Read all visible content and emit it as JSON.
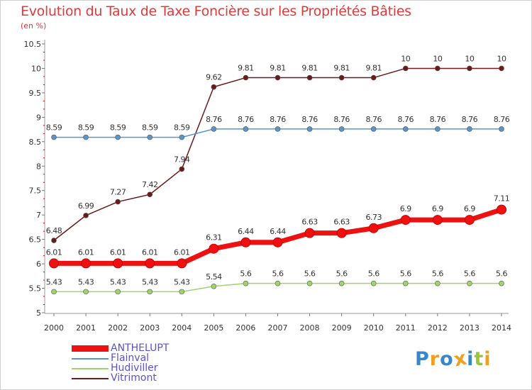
{
  "title": "Evolution du Taux de Taxe Foncière sur les Propriétés Bâties",
  "subtitle": "(en %)",
  "chart_data": {
    "type": "line",
    "title": "Evolution du Taux de Taxe Foncière sur les Propriétés Bâties",
    "ylabel": "(en %)",
    "xlabel": "",
    "x": [
      "2000",
      "2001",
      "2002",
      "2003",
      "2004",
      "2005",
      "2006",
      "2007",
      "2008",
      "2009",
      "2010",
      "2011",
      "2012",
      "2013",
      "2014"
    ],
    "ylim": [
      5,
      10.5
    ],
    "yticks": [
      "5",
      "5.5",
      "6",
      "6.5",
      "7",
      "7.5",
      "8",
      "8.5",
      "9",
      "9.5",
      "10",
      "10.5"
    ],
    "series": [
      {
        "name": "Vitrimont",
        "color": "#6b1a1a",
        "values": [
          6.48,
          6.99,
          7.27,
          7.42,
          7.94,
          9.62,
          9.81,
          9.81,
          9.81,
          9.81,
          9.81,
          10,
          10,
          10,
          10
        ],
        "labels": [
          "6.48",
          "6.99",
          "7.27",
          "7.42",
          "7.94",
          "9.62",
          "9.81",
          "9.81",
          "9.81",
          "9.81",
          "9.81",
          "10",
          "10",
          "10",
          "10"
        ]
      },
      {
        "name": "Flainval",
        "color": "#5b95c8",
        "values": [
          8.59,
          8.59,
          8.59,
          8.59,
          8.59,
          8.76,
          8.76,
          8.76,
          8.76,
          8.76,
          8.76,
          8.76,
          8.76,
          8.76,
          8.76
        ],
        "labels": [
          "8.59",
          "8.59",
          "8.59",
          "8.59",
          "8.59",
          "8.76",
          "8.76",
          "8.76",
          "8.76",
          "8.76",
          "8.76",
          "8.76",
          "8.76",
          "8.76",
          "8.76"
        ]
      },
      {
        "name": "Hudiviller",
        "color": "#9ed46a",
        "values": [
          5.43,
          5.43,
          5.43,
          5.43,
          5.43,
          5.54,
          5.6,
          5.6,
          5.6,
          5.6,
          5.6,
          5.6,
          5.6,
          5.6,
          5.6
        ],
        "labels": [
          "5.43",
          "5.43",
          "5.43",
          "5.43",
          "5.43",
          "5.54",
          "5.6",
          "5.6",
          "5.6",
          "5.6",
          "5.6",
          "5.6",
          "5.6",
          "5.6",
          "5.6"
        ]
      },
      {
        "name": "ANTHELUPT",
        "color": "#ee1111",
        "values": [
          6.01,
          6.01,
          6.01,
          6.01,
          6.01,
          6.31,
          6.44,
          6.44,
          6.63,
          6.63,
          6.73,
          6.9,
          6.9,
          6.9,
          7.11
        ],
        "labels": [
          "6.01",
          "6.01",
          "6.01",
          "6.01",
          "6.01",
          "6.31",
          "6.44",
          "6.44",
          "6.63",
          "6.63",
          "6.73",
          "6.9",
          "6.9",
          "6.9",
          "7.11"
        ]
      }
    ],
    "legend_order": [
      "ANTHELUPT",
      "Flainval",
      "Hudiviller",
      "Vitrimont"
    ],
    "legend_placement": "bottom-left",
    "grid": false
  },
  "logo": {
    "letters": [
      "P",
      "r",
      "o",
      "x",
      "i",
      "t",
      "i"
    ],
    "colors": [
      "#3a86c8",
      "#f0a020",
      "#3a86c8",
      "#f0a020",
      "#3a86c8",
      "#9ac43c",
      "#f0a020"
    ]
  }
}
